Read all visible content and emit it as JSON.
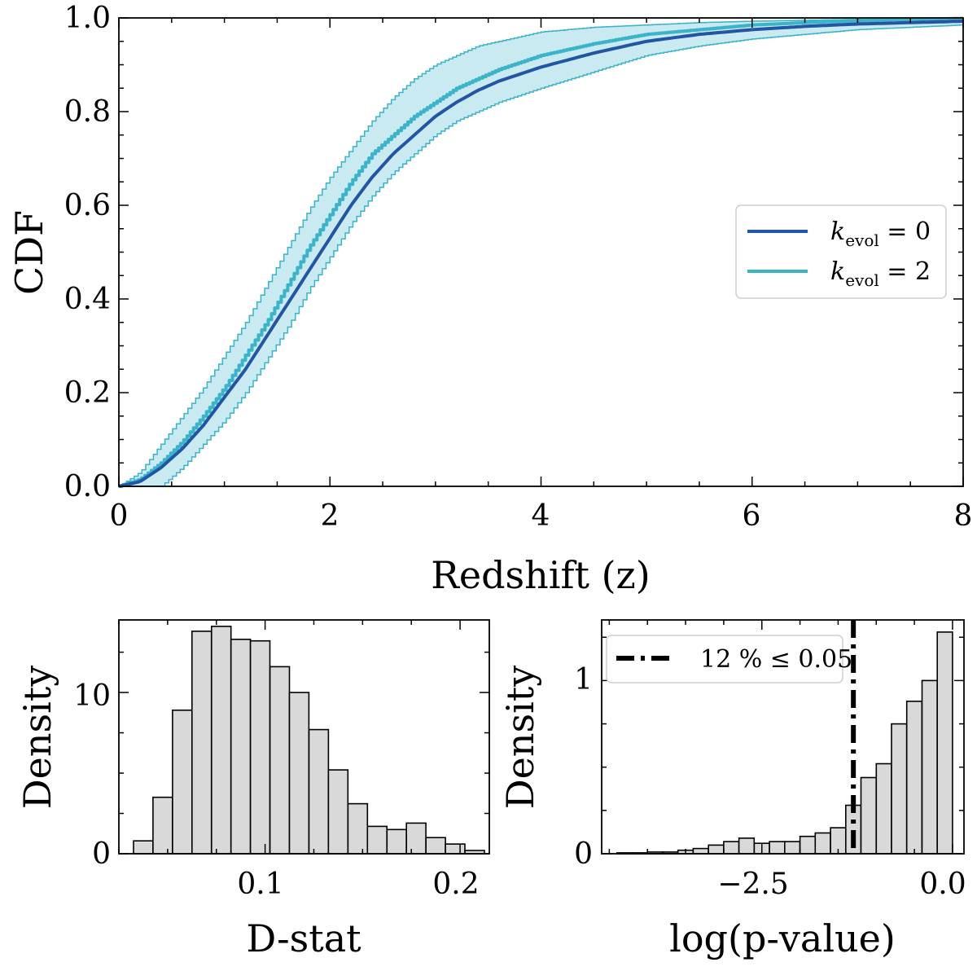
{
  "chart_data": [
    {
      "type": "line",
      "xlabel": "Redshift (z)",
      "ylabel": "CDF",
      "xlim": [
        0,
        8
      ],
      "ylim": [
        0,
        1
      ],
      "xticks": [
        "0",
        "2",
        "4",
        "6",
        "8"
      ],
      "yticks": [
        "0.0",
        "0.2",
        "0.4",
        "0.6",
        "0.8",
        "1.0"
      ],
      "grid": false,
      "legend_position": "center-right",
      "series": [
        {
          "name": "k_evol = 0",
          "legend_parts": {
            "base": "k",
            "sub": "evol",
            "rest": " = 0"
          },
          "color": "#2255a4",
          "style": "solid",
          "x": [
            0.0,
            0.2,
            0.4,
            0.6,
            0.8,
            1.0,
            1.2,
            1.4,
            1.6,
            1.8,
            2.0,
            2.2,
            2.4,
            2.6,
            2.8,
            3.0,
            3.2,
            3.4,
            3.6,
            3.8,
            4.0,
            4.5,
            5.0,
            5.5,
            6.0,
            6.5,
            7.0,
            7.5,
            8.0
          ],
          "y": [
            0.0,
            0.01,
            0.04,
            0.08,
            0.13,
            0.19,
            0.25,
            0.32,
            0.39,
            0.46,
            0.53,
            0.6,
            0.66,
            0.71,
            0.75,
            0.79,
            0.82,
            0.845,
            0.865,
            0.88,
            0.895,
            0.925,
            0.95,
            0.965,
            0.975,
            0.982,
            0.987,
            0.99,
            0.993
          ]
        },
        {
          "name": "k_evol = 2",
          "legend_parts": {
            "base": "k",
            "sub": "evol",
            "rest": " = 2"
          },
          "color": "#3bb3c8",
          "style": "stepped",
          "x": [
            0.0,
            0.2,
            0.4,
            0.6,
            0.8,
            1.0,
            1.2,
            1.4,
            1.6,
            1.8,
            2.0,
            2.2,
            2.4,
            2.6,
            2.8,
            3.0,
            3.2,
            3.4,
            3.6,
            3.8,
            4.0,
            4.5,
            5.0,
            5.5,
            6.0,
            6.5,
            7.0,
            7.5,
            8.0
          ],
          "y": [
            0.0,
            0.015,
            0.05,
            0.095,
            0.15,
            0.21,
            0.28,
            0.35,
            0.43,
            0.51,
            0.58,
            0.65,
            0.71,
            0.75,
            0.79,
            0.82,
            0.85,
            0.87,
            0.89,
            0.905,
            0.92,
            0.945,
            0.965,
            0.975,
            0.985,
            0.99,
            0.994,
            0.997,
            0.999
          ]
        }
      ],
      "band": {
        "color": "#3bb3c8",
        "x": [
          0.0,
          0.2,
          0.4,
          0.6,
          0.8,
          1.0,
          1.2,
          1.4,
          1.6,
          1.8,
          2.0,
          2.2,
          2.4,
          2.6,
          2.8,
          3.0,
          3.2,
          3.4,
          3.6,
          3.8,
          4.0,
          4.5,
          5.0,
          5.5,
          6.0,
          6.5,
          7.0,
          7.5,
          8.0
        ],
        "lower": [
          0.0,
          0.0,
          0.0,
          0.04,
          0.09,
          0.14,
          0.2,
          0.27,
          0.34,
          0.42,
          0.49,
          0.56,
          0.62,
          0.67,
          0.71,
          0.75,
          0.78,
          0.8,
          0.82,
          0.835,
          0.85,
          0.885,
          0.92,
          0.94,
          0.955,
          0.965,
          0.975,
          0.98,
          0.985
        ],
        "upper": [
          0.0,
          0.03,
          0.09,
          0.15,
          0.21,
          0.28,
          0.35,
          0.43,
          0.51,
          0.59,
          0.66,
          0.72,
          0.78,
          0.83,
          0.87,
          0.9,
          0.92,
          0.94,
          0.95,
          0.96,
          0.97,
          0.98,
          0.985,
          0.99,
          0.993,
          0.995,
          0.997,
          0.998,
          0.999
        ]
      }
    },
    {
      "type": "bar",
      "subtype": "histogram",
      "xlabel": "D-stat",
      "ylabel": "Density",
      "xlim": [
        0.025,
        0.215
      ],
      "ylim": [
        0,
        14.5
      ],
      "xticks": [
        "0.1",
        "0.2"
      ],
      "yticks": [
        "0",
        "10"
      ],
      "bar_color": "#d9d9d9",
      "bin_edges": [
        0.0325,
        0.0425,
        0.0525,
        0.0625,
        0.0725,
        0.0825,
        0.0925,
        0.1025,
        0.1125,
        0.1225,
        0.1325,
        0.1425,
        0.1525,
        0.1625,
        0.1725,
        0.1825,
        0.1925,
        0.2025,
        0.2125
      ],
      "values": [
        0.8,
        3.5,
        8.9,
        13.8,
        14.1,
        13.3,
        13.2,
        11.6,
        10.0,
        7.7,
        5.2,
        3.1,
        1.7,
        1.5,
        1.9,
        1.0,
        0.6,
        0.2
      ]
    },
    {
      "type": "bar",
      "subtype": "histogram",
      "xlabel": "log(p-value)",
      "ylabel": "Density",
      "xlim": [
        -4.6,
        0.15
      ],
      "ylim": [
        0,
        1.35
      ],
      "xticks": [
        "−2.5",
        "0.0"
      ],
      "yticks": [
        "0",
        "1"
      ],
      "bar_color": "#d9d9d9",
      "bin_edges": [
        -4.4,
        -4.2,
        -4.0,
        -3.8,
        -3.6,
        -3.4,
        -3.2,
        -3.0,
        -2.8,
        -2.6,
        -2.4,
        -2.2,
        -2.0,
        -1.8,
        -1.6,
        -1.4,
        -1.2,
        -1.0,
        -0.8,
        -0.6,
        -0.4,
        -0.2,
        0.0
      ],
      "values": [
        0.005,
        0.005,
        0.01,
        0.01,
        0.02,
        0.03,
        0.05,
        0.07,
        0.09,
        0.06,
        0.07,
        0.07,
        0.1,
        0.12,
        0.15,
        0.28,
        0.44,
        0.52,
        0.75,
        0.88,
        1.0,
        1.28
      ],
      "threshold": {
        "x": -1.3,
        "style": "dash-dot",
        "color": "#000000"
      },
      "legend_label": "12 % ≤ 0.05",
      "legend_position": "top-left"
    }
  ]
}
